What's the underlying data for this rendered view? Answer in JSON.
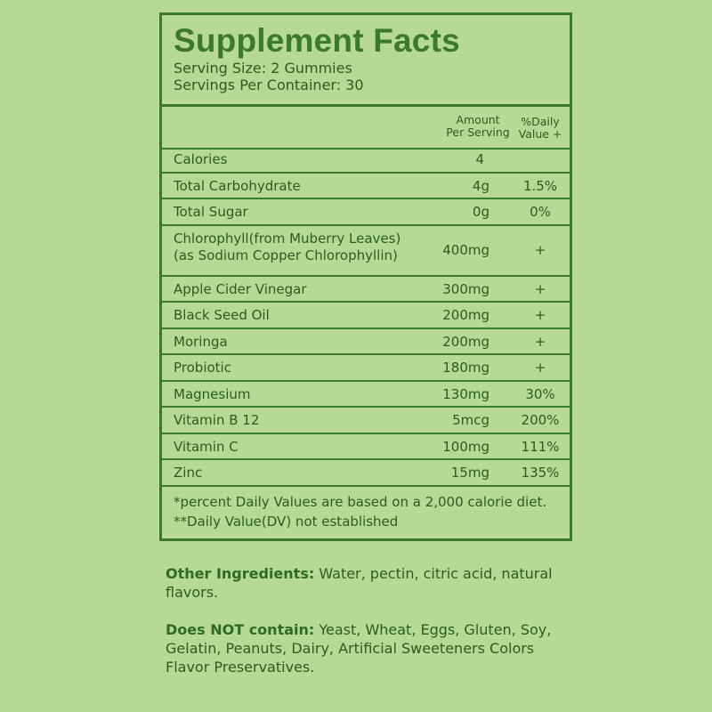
{
  "label": {
    "title": "Supplement Facts",
    "serving_size": "Serving Size: 2 Gummies",
    "servings_per_container": "Servings Per Container: 30",
    "col_amount_line1": "Amount",
    "col_amount_line2": "Per Serving",
    "col_dv_line1": "%Daily",
    "col_dv_line2": "Value +",
    "rows": [
      {
        "name": "Calories",
        "amount": "4",
        "dv": ""
      },
      {
        "name": "Total Carbohydrate",
        "amount": "4g",
        "dv": "1.5%"
      },
      {
        "name": "Total Sugar",
        "amount": "0g",
        "dv": "0%"
      },
      {
        "name": "Chlorophyll(from Muberry Leaves)",
        "name2": "(as Sodium Copper Chlorophyllin)",
        "amount": "400mg",
        "dv": "+"
      },
      {
        "name": "Apple Cider Vinegar",
        "amount": "300mg",
        "dv": "+"
      },
      {
        "name": "Black Seed Oil",
        "amount": "200mg",
        "dv": "+"
      },
      {
        "name": "Moringa",
        "amount": "200mg",
        "dv": "+"
      },
      {
        "name": "Probiotic",
        "amount": "180mg",
        "dv": "+"
      },
      {
        "name": "Magnesium",
        "amount": "130mg",
        "dv": "30%"
      },
      {
        "name": "Vitamin B 12",
        "amount": "5mcg",
        "dv": "200%"
      },
      {
        "name": "Vitamin C",
        "amount": "100mg",
        "dv": "111%"
      },
      {
        "name": "Zinc",
        "amount": "15mg",
        "dv": "135%"
      }
    ],
    "footnote1": "*percent Daily Values are based on a 2,000 calorie diet.",
    "footnote2": "**Daily Value(DV) not established"
  },
  "other_ingredients": {
    "label": "Other Ingredients:",
    "text": " Water, pectin, citric acid, natural flavors."
  },
  "does_not_contain": {
    "label": "Does NOT contain:",
    "text": " Yeast, Wheat, Eggs, Gluten, Soy, Gelatin, Peanuts, Dairy, Artificial Sweeteners Colors Flavor Preservatives."
  },
  "colors": {
    "background": "#b6da94",
    "accent": "#3b7a2c",
    "text": "#2d5a22"
  }
}
